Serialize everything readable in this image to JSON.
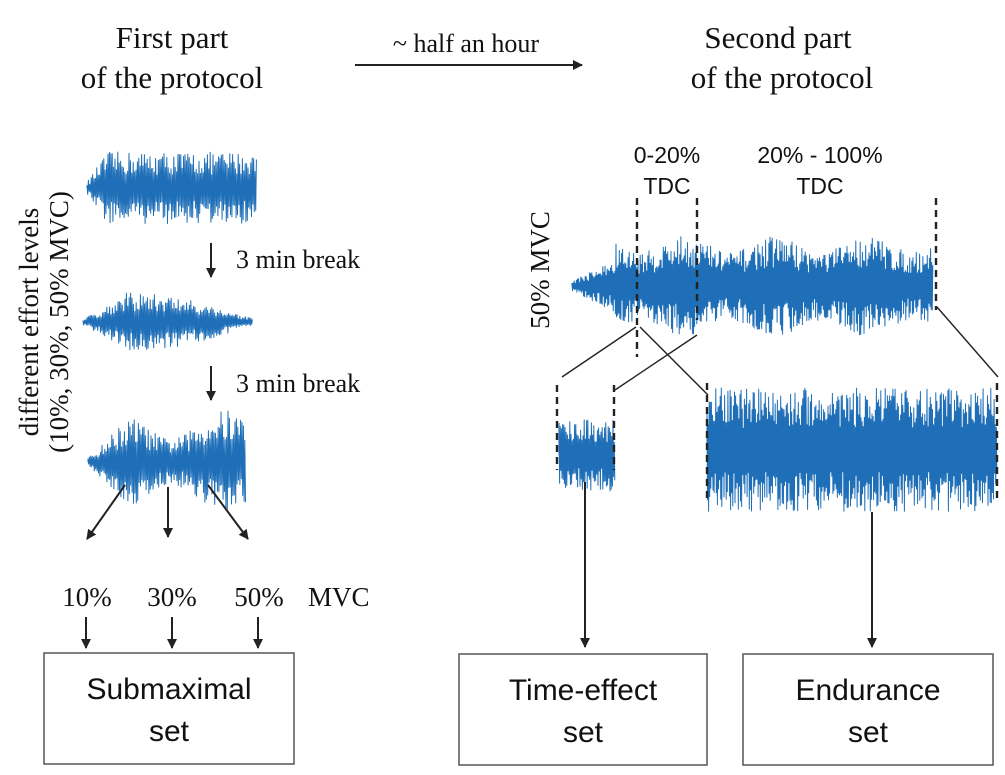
{
  "header": {
    "first_part_line1": "First part",
    "first_part_line2": "of the protocol",
    "transition": "~ half an hour",
    "second_part_line1": "Second part",
    "second_part_line2": "of the protocol"
  },
  "first_part": {
    "ylabel_line1": "different effort levels",
    "ylabel_line2": "(10%, 30%, 50% MVC)",
    "break_label": "3 min break",
    "levels": [
      "10%",
      "30%",
      "50%"
    ],
    "levels_unit": "MVC",
    "set_label_line1": "Submaximal",
    "set_label_line2": "set"
  },
  "second_part": {
    "ylabel": "50% MVC",
    "segment1_line1": "0-20%",
    "segment1_line2": "TDC",
    "segment2_line1": "20% - 100%",
    "segment2_line2": "TDC",
    "set1_line1": "Time-effect",
    "set1_line2": "set",
    "set2_line1": "Endurance",
    "set2_line2": "set"
  },
  "colors": {
    "signal": "#1f6fb8",
    "lines": "#222222",
    "box_border": "#555555"
  }
}
